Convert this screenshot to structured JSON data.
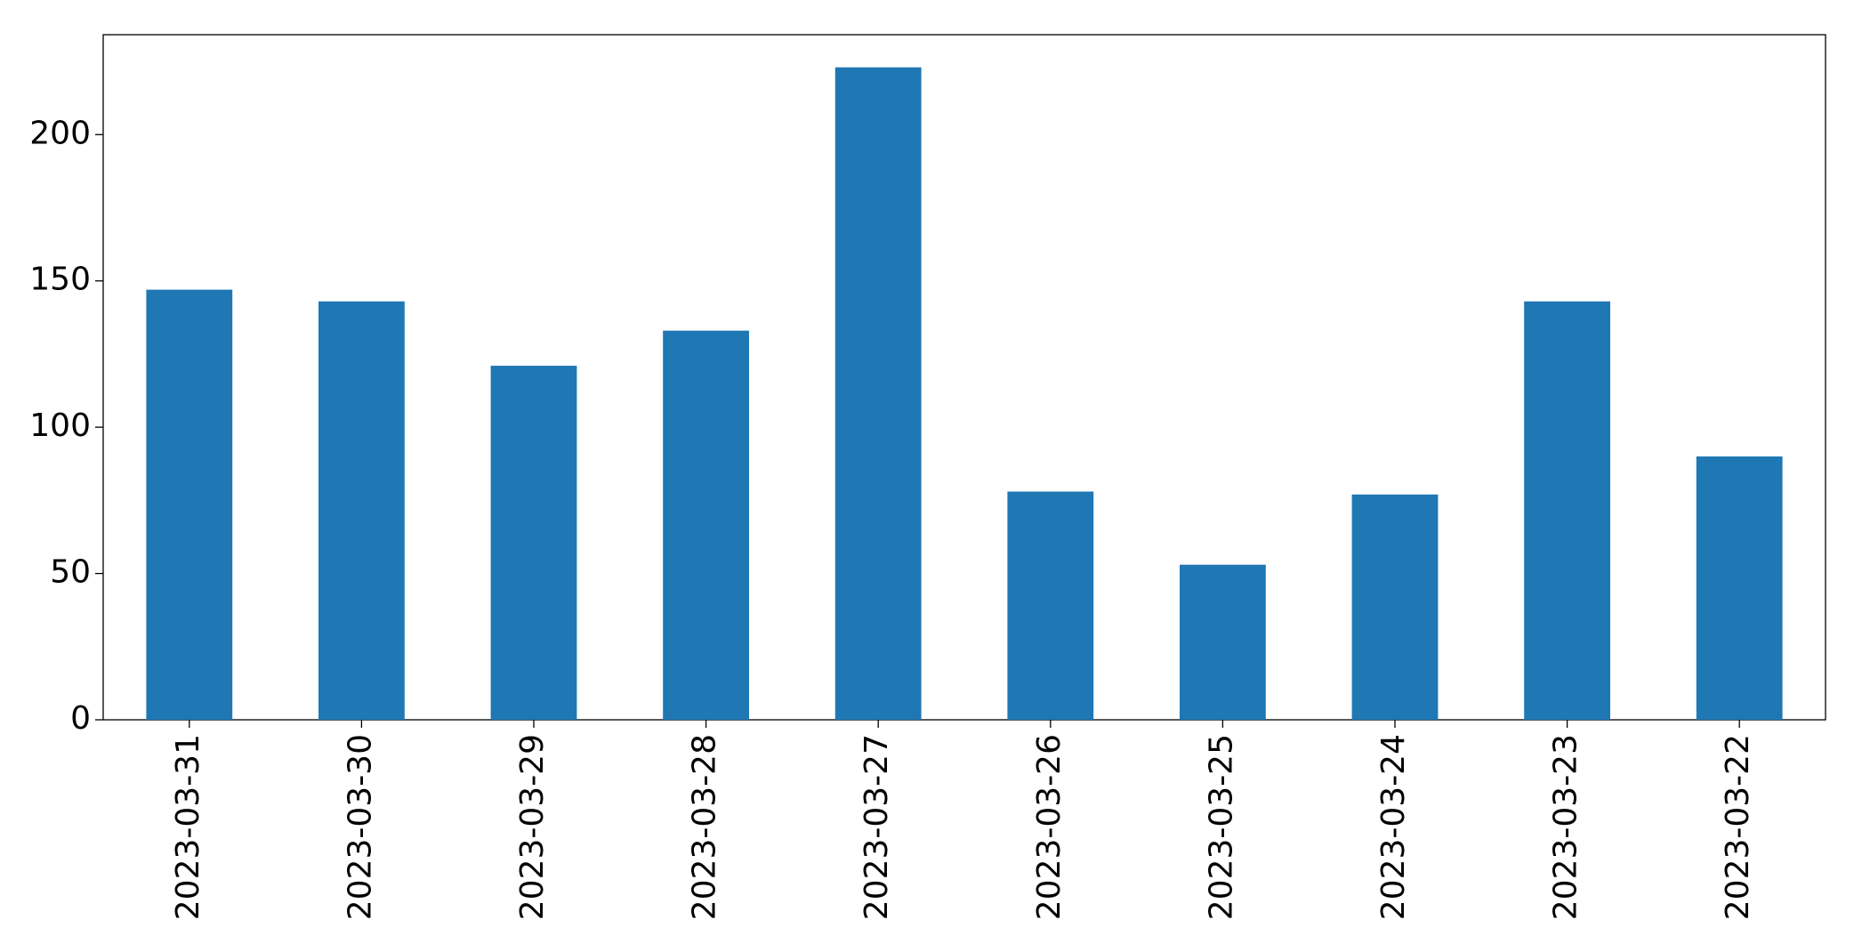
{
  "chart_data": {
    "type": "bar",
    "categories": [
      "2023-03-31",
      "2023-03-30",
      "2023-03-29",
      "2023-03-28",
      "2023-03-27",
      "2023-03-26",
      "2023-03-25",
      "2023-03-24",
      "2023-03-23",
      "2023-03-22"
    ],
    "values": [
      147,
      143,
      121,
      133,
      223,
      78,
      53,
      77,
      143,
      90
    ],
    "color": "#1f77b4",
    "ylim": [
      0,
      234.15
    ],
    "yticks": [
      0,
      50,
      100,
      150,
      200
    ],
    "grid": false
  }
}
